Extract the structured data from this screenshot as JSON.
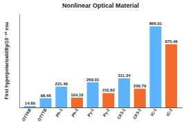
{
  "chart_data": {
    "type": "bar",
    "title": "Nonlinear Optical Material",
    "y_label": "First hyperpolarizability/10⁻³⁰ esu",
    "categories": [
      "OTTAB",
      "OTTTB",
      "Ph-1",
      "Ph-2",
      "Py-1",
      "Py-2",
      "CF3-1",
      "CF3-2",
      "IC-1",
      "IC-2"
    ],
    "values": [
      14.69,
      98.48,
      221.49,
      104.16,
      269.01,
      152.82,
      311.34,
      200.79,
      866.01,
      675.46
    ],
    "colors": [
      "#5cb3ff",
      "#5cb3ff",
      "#5cb3ff",
      "#f26b2c",
      "#5cb3ff",
      "#f26b2c",
      "#5cb3ff",
      "#f26b2c",
      "#5cb3ff",
      "#f26b2c"
    ],
    "ylim": [
      0,
      1000
    ],
    "grid": false,
    "data_labels": true,
    "tick_labels": "x"
  }
}
